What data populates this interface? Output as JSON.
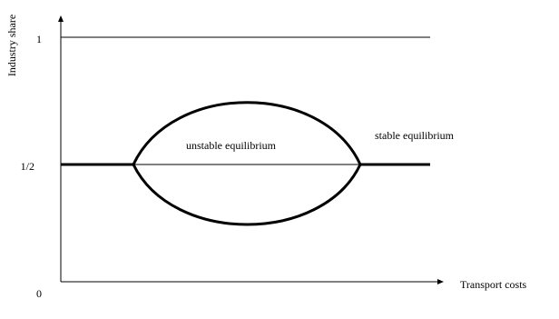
{
  "axes": {
    "y_label": "Industry share",
    "x_label": "Transport costs",
    "y_ticks": [
      "1",
      "1/2",
      "0"
    ]
  },
  "annotations": {
    "unstable": "unstable equilibrium",
    "stable": "stable equilibrium"
  }
}
